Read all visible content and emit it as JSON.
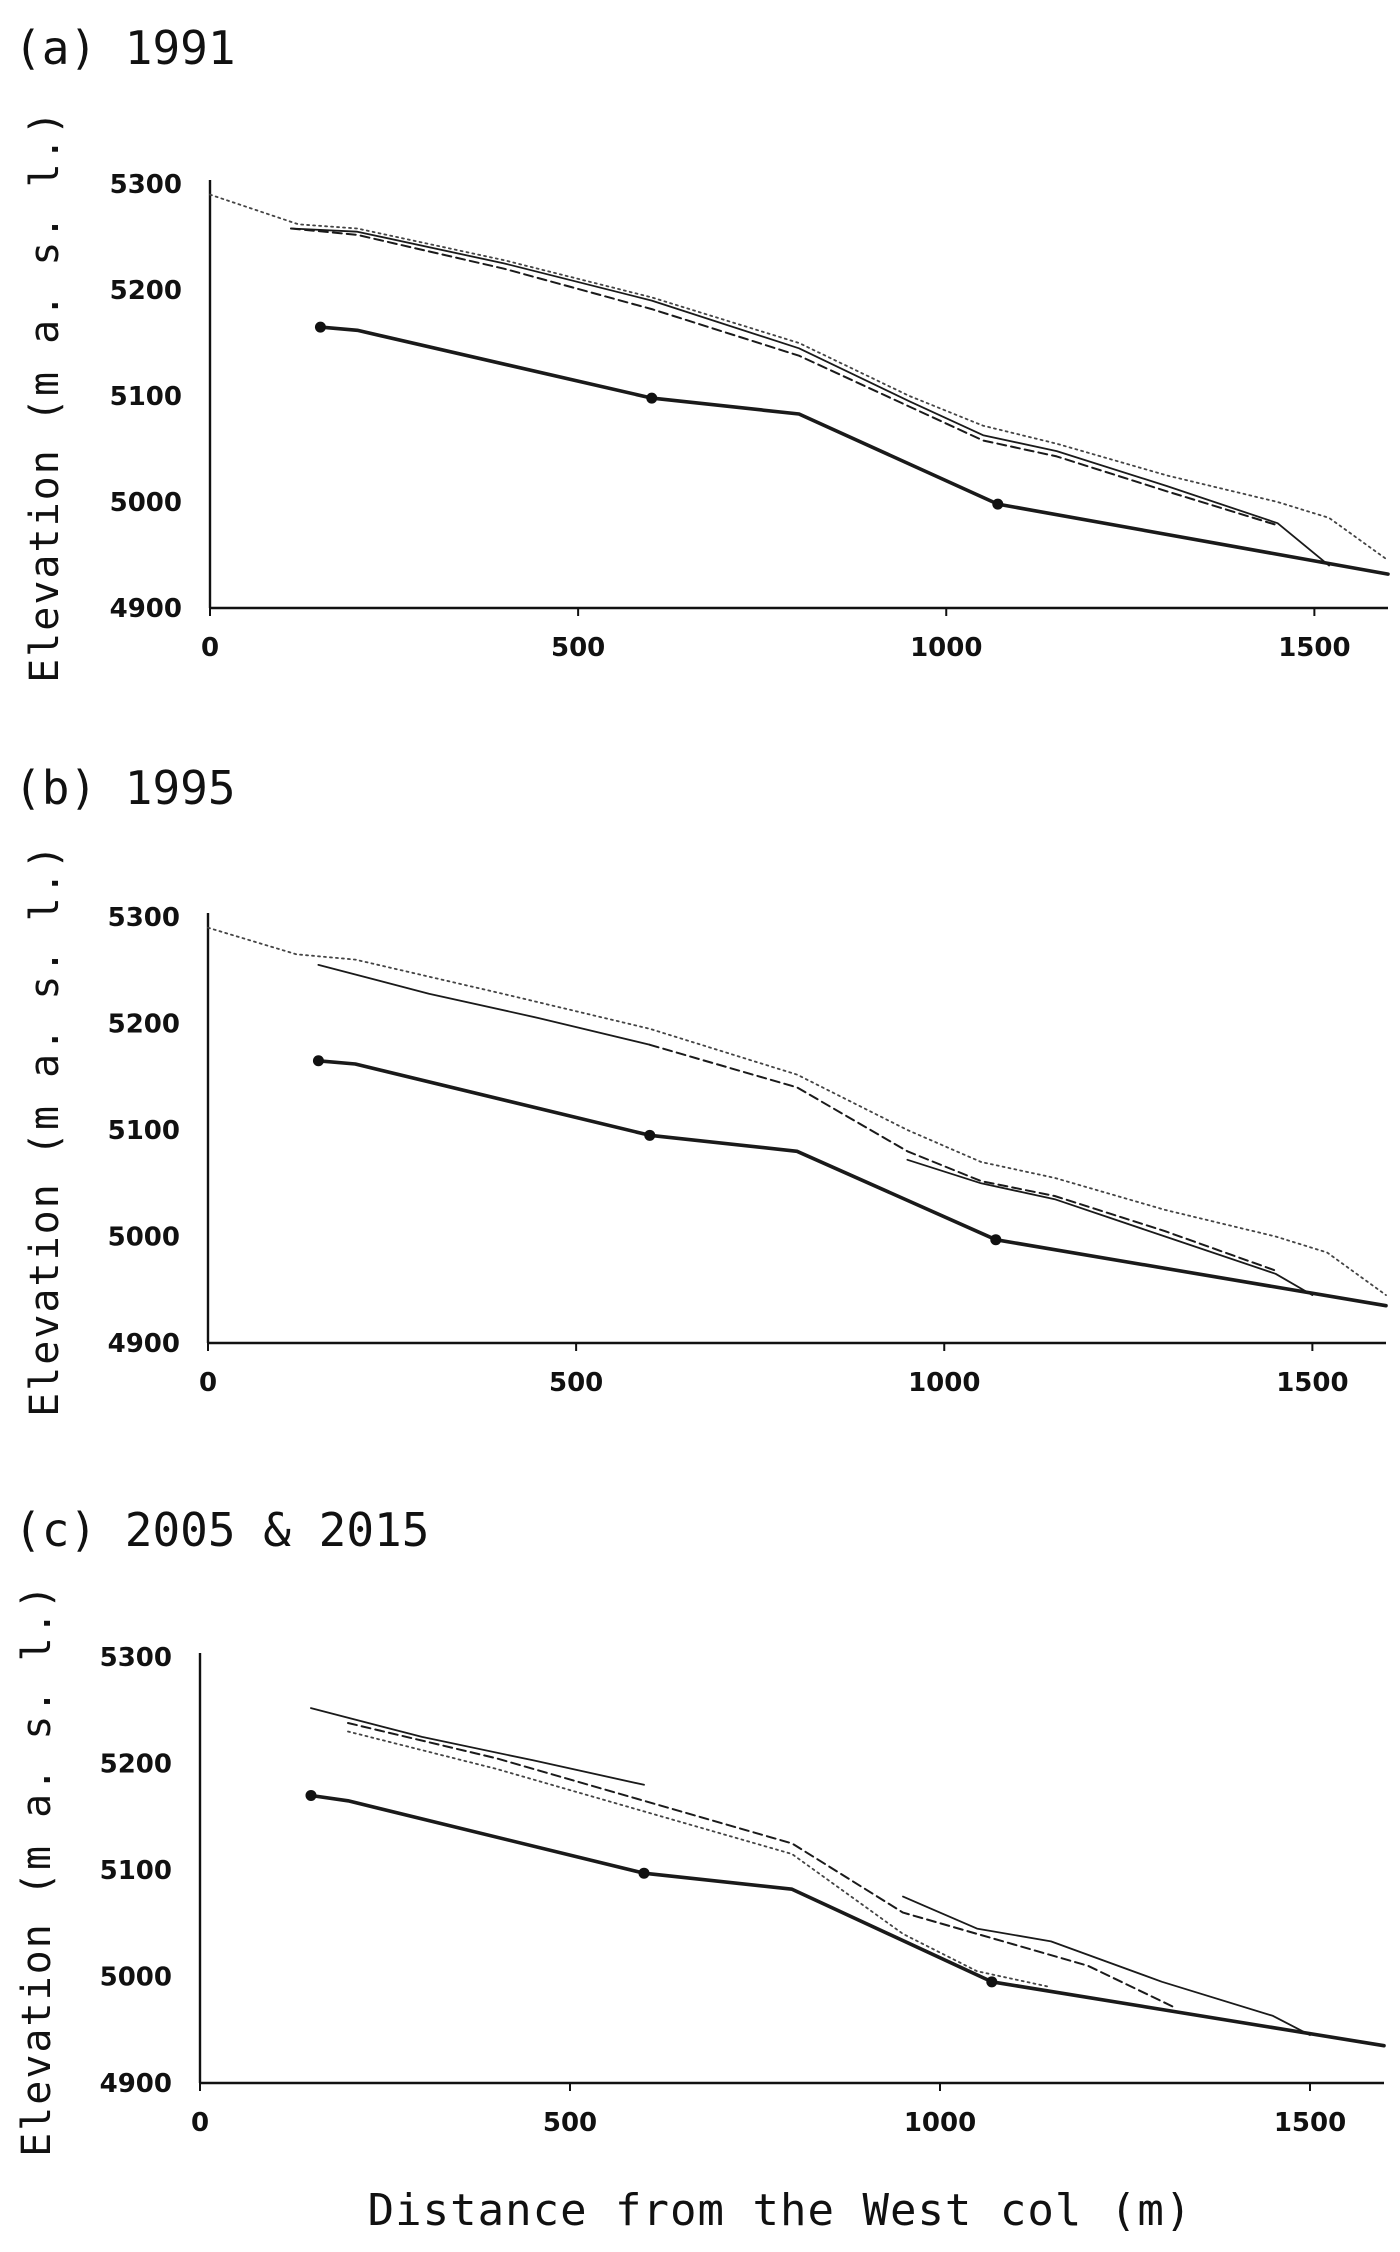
{
  "xlabel": "Distance from the West col (m)",
  "chart_data": [
    {
      "type": "line",
      "panel_title": "(a) 1991",
      "ylabel": "Elevation (m a. s. l.)",
      "xlim": [
        0,
        1600
      ],
      "ylim": [
        4900,
        5300
      ],
      "xticks": [
        "0",
        "500",
        "1000",
        "1500"
      ],
      "yticks": [
        "4900",
        "5000",
        "5100",
        "5200",
        "5300"
      ],
      "series": [
        {
          "style": "solid-bold",
          "markers": [
            0,
            2,
            4
          ],
          "x": [
            150,
            200,
            600,
            800,
            1070,
            1600
          ],
          "y": [
            5165,
            5162,
            5098,
            5083,
            4998,
            4932
          ]
        },
        {
          "style": "solid-thin",
          "markers": [],
          "x": [
            110,
            200,
            400,
            600,
            800,
            950,
            1050,
            1150,
            1300,
            1450,
            1520
          ],
          "y": [
            5258,
            5255,
            5225,
            5190,
            5145,
            5095,
            5063,
            5048,
            5015,
            4980,
            4940
          ]
        },
        {
          "style": "dashed",
          "markers": [],
          "x": [
            110,
            200,
            400,
            600,
            800,
            950,
            1050,
            1150,
            1300,
            1450
          ],
          "y": [
            5258,
            5252,
            5220,
            5182,
            5138,
            5090,
            5058,
            5043,
            5010,
            4978
          ]
        },
        {
          "style": "dotted",
          "markers": [],
          "x": [
            0,
            120,
            200,
            400,
            600,
            800,
            950,
            1050,
            1150,
            1300,
            1450,
            1520,
            1600
          ],
          "y": [
            5290,
            5262,
            5258,
            5228,
            5193,
            5150,
            5100,
            5072,
            5055,
            5025,
            5000,
            4985,
            4945
          ]
        }
      ]
    },
    {
      "type": "line",
      "panel_title": "(b) 1995",
      "ylabel": "Elevation (m a. s. l.)",
      "xlim": [
        0,
        1600
      ],
      "ylim": [
        4900,
        5300
      ],
      "xticks": [
        "0",
        "500",
        "1000",
        "1500"
      ],
      "yticks": [
        "4900",
        "5000",
        "5100",
        "5200",
        "5300"
      ],
      "series": [
        {
          "style": "solid-bold",
          "markers": [
            0,
            2,
            4
          ],
          "x": [
            150,
            200,
            600,
            800,
            1070,
            1600
          ],
          "y": [
            5165,
            5162,
            5095,
            5080,
            4997,
            4935
          ]
        },
        {
          "style": "solid-thin",
          "markers": [],
          "x": [
            150,
            300,
            450,
            600
          ],
          "y": [
            5255,
            5228,
            5205,
            5180
          ]
        },
        {
          "style": "solid-thin",
          "markers": [],
          "x": [
            950,
            1050,
            1150,
            1300,
            1450,
            1500
          ],
          "y": [
            5072,
            5050,
            5035,
            5000,
            4965,
            4945
          ]
        },
        {
          "style": "dashed",
          "markers": [],
          "x": [
            600,
            800,
            950,
            1050,
            1150,
            1300,
            1450
          ],
          "y": [
            5180,
            5140,
            5080,
            5052,
            5038,
            5005,
            4968
          ]
        },
        {
          "style": "dotted",
          "markers": [],
          "x": [
            0,
            120,
            200,
            400,
            600,
            800,
            950,
            1050,
            1150,
            1300,
            1450,
            1520,
            1600
          ],
          "y": [
            5290,
            5265,
            5260,
            5228,
            5195,
            5152,
            5100,
            5070,
            5055,
            5025,
            5000,
            4985,
            4945
          ]
        }
      ]
    },
    {
      "type": "line",
      "panel_title": "(c) 2005 & 2015",
      "ylabel": "Elevation (m a. s. l.)",
      "xlim": [
        0,
        1600
      ],
      "ylim": [
        4900,
        5300
      ],
      "xticks": [
        "0",
        "500",
        "1000",
        "1500"
      ],
      "yticks": [
        "4900",
        "5000",
        "5100",
        "5200",
        "5300"
      ],
      "series": [
        {
          "style": "solid-bold",
          "markers": [
            0,
            2,
            4
          ],
          "x": [
            150,
            200,
            600,
            800,
            1070,
            1600
          ],
          "y": [
            5170,
            5165,
            5097,
            5082,
            4995,
            4935
          ]
        },
        {
          "style": "solid-thin",
          "markers": [],
          "x": [
            150,
            300,
            450,
            600
          ],
          "y": [
            5252,
            5225,
            5203,
            5180
          ]
        },
        {
          "style": "solid-thin",
          "markers": [],
          "x": [
            950,
            1050,
            1150,
            1300,
            1450,
            1500
          ],
          "y": [
            5075,
            5045,
            5033,
            4995,
            4963,
            4945
          ]
        },
        {
          "style": "dashed",
          "markers": [],
          "x": [
            200,
            400,
            600,
            800,
            950,
            1100,
            1200,
            1320
          ],
          "y": [
            5238,
            5205,
            5165,
            5125,
            5060,
            5030,
            5010,
            4970
          ]
        },
        {
          "style": "dotted",
          "markers": [],
          "x": [
            200,
            400,
            600,
            800,
            950,
            1050,
            1150
          ],
          "y": [
            5230,
            5195,
            5155,
            5115,
            5040,
            5005,
            4990
          ]
        }
      ]
    }
  ]
}
